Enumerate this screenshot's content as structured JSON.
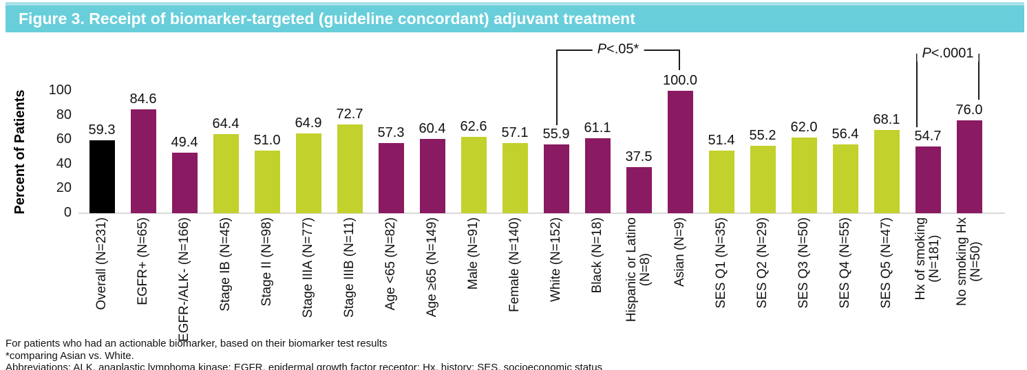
{
  "title": "Figure 3. Receipt of biomarker-targeted (guideline concordant) adjuvant treatment",
  "header_color": "#67ceda",
  "chart_data": {
    "type": "bar",
    "title": "Receipt of biomarker-targeted (guideline concordant) adjuvant treatment",
    "xlabel": "",
    "ylabel": "Percent of Patients",
    "ylim": [
      0,
      100
    ],
    "yticks": [
      0,
      20,
      40,
      60,
      80,
      100
    ],
    "grid": false,
    "legend": "none",
    "categories": [
      "Overall (N=231)",
      "EGFR+ (N=65)",
      "EGFR-/ALK- (N=166)",
      "Stage IB (N=45)",
      "Stage II (N=98)",
      "Stage IIIA (N=77)",
      "Stage IIIB (N=11)",
      "Age <65 (N=82)",
      "Age ≥65 (N=149)",
      "Male (N=91)",
      "Female (N=140)",
      "White (N=152)",
      "Black (N=18)",
      "Hispanic or Latino\n(N=8)",
      "Asian (N=9)",
      "SES Q1 (N=35)",
      "SES Q2 (N=29)",
      "SES Q3 (N=50)",
      "SES Q4 (N=55)",
      "SES Q5 (N=47)",
      "Hx of smoking\n(N=181)",
      "No smoking Hx\n(N=50)"
    ],
    "values": [
      59.3,
      84.6,
      49.4,
      64.4,
      51.0,
      64.9,
      72.7,
      57.3,
      60.4,
      62.6,
      57.1,
      55.9,
      61.1,
      37.5,
      100.0,
      51.4,
      55.2,
      62.0,
      56.4,
      68.1,
      54.7,
      76.0
    ],
    "value_labels": [
      "59.3",
      "84.6",
      "49.4",
      "64.4",
      "51.0",
      "64.9",
      "72.7",
      "57.3",
      "60.4",
      "62.6",
      "57.1",
      "55.9",
      "61.1",
      "37.5",
      "100.0",
      "51.4",
      "55.2",
      "62.0",
      "56.4",
      "68.1",
      "54.7",
      "76.0"
    ],
    "bar_colors": [
      "black",
      "maroon",
      "maroon",
      "green",
      "green",
      "green",
      "green",
      "maroon",
      "maroon",
      "green",
      "green",
      "maroon",
      "maroon",
      "maroon",
      "maroon",
      "green",
      "green",
      "green",
      "green",
      "green",
      "maroon",
      "maroon"
    ],
    "palette": {
      "black": "#000000",
      "maroon": "#8a1a61",
      "green": "#c2d12b"
    },
    "annotations": [
      {
        "label": "P<.05*",
        "from_category": "White (N=152)",
        "to_category": "Asian (N=9)",
        "from_index": 11,
        "to_index": 14
      },
      {
        "label": "P<.0001",
        "from_category": "Hx of smoking (N=181)",
        "to_category": "No smoking Hx (N=50)",
        "from_index": 20,
        "to_index": 21
      }
    ]
  },
  "footnotes": [
    "For patients who had an actionable biomarker, based on their biomarker test results",
    "*comparing Asian vs. White.",
    "Abbreviations: ALK, anaplastic lymphoma kinase; EGFR, epidermal growth factor receptor; Hx, history; SES, socioeconomic status"
  ]
}
